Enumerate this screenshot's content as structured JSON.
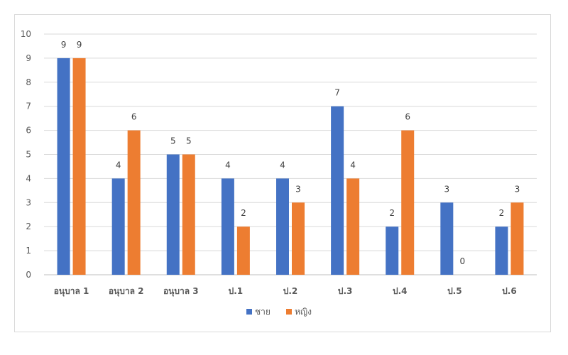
{
  "chart_data": {
    "type": "bar",
    "title": "",
    "xlabel": "",
    "ylabel": "",
    "ylim": [
      0,
      10
    ],
    "yticks": [
      0,
      1,
      2,
      3,
      4,
      5,
      6,
      7,
      8,
      9,
      10
    ],
    "grid": true,
    "legend": "bottom",
    "categories": [
      "อนุบาล 1",
      "อนุบาล 2",
      "อนุบาล 3",
      "ป.1",
      "ป.2",
      "ป.3",
      "ป.4",
      "ป.5",
      "ป.6"
    ],
    "series": [
      {
        "name": "ชาย",
        "color": "#4472c4",
        "values": [
          9,
          4,
          5,
          4,
          4,
          7,
          2,
          3,
          2
        ]
      },
      {
        "name": "หญิง",
        "color": "#ed7d31",
        "values": [
          9,
          6,
          5,
          2,
          3,
          4,
          6,
          0,
          3
        ]
      }
    ]
  }
}
